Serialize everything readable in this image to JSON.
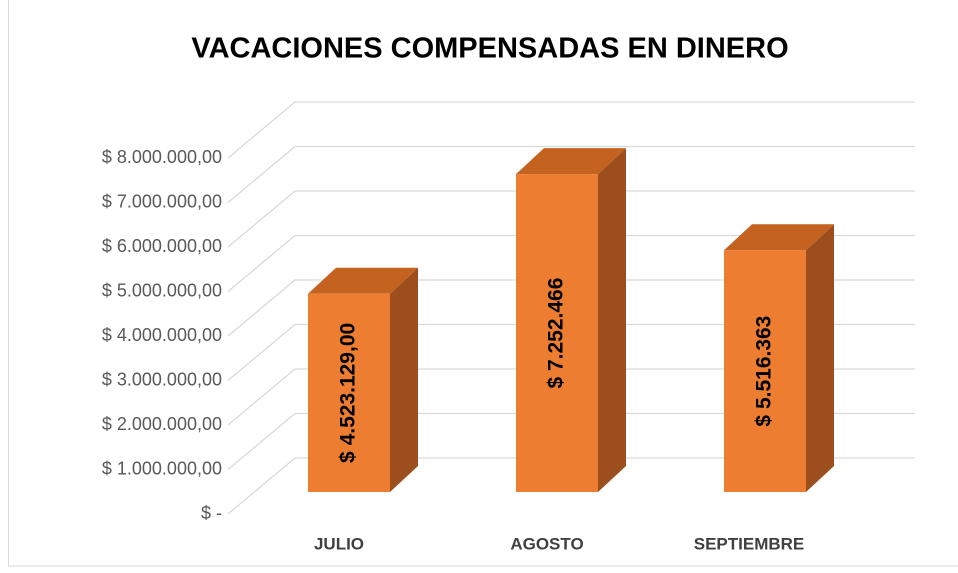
{
  "chart_data": {
    "type": "bar3d",
    "title": "VACACIONES COMPENSADAS EN DINERO",
    "categories": [
      "JULIO",
      "AGOSTO",
      "SEPTIEMBRE"
    ],
    "values": [
      4523129,
      7252466,
      5516363
    ],
    "value_labels": [
      "$ 4.523.129,00",
      "$ 7.252.466",
      "$ 5.516.363"
    ],
    "color": "#ed7d31",
    "ylim": [
      0,
      8000000
    ],
    "yticks": [
      {
        "value": 0,
        "label": "$ -"
      },
      {
        "value": 1000000,
        "label": "$ 1.000.000,00"
      },
      {
        "value": 2000000,
        "label": "$ 2.000.000,00"
      },
      {
        "value": 3000000,
        "label": "$ 3.000.000,00"
      },
      {
        "value": 4000000,
        "label": "$ 4.000.000,00"
      },
      {
        "value": 5000000,
        "label": "$ 5.000.000,00"
      },
      {
        "value": 6000000,
        "label": "$ 6.000.000,00"
      },
      {
        "value": 7000000,
        "label": "$ 7.000.000,00"
      },
      {
        "value": 8000000,
        "label": "$ 8.000.000,00"
      }
    ],
    "grid": true
  }
}
